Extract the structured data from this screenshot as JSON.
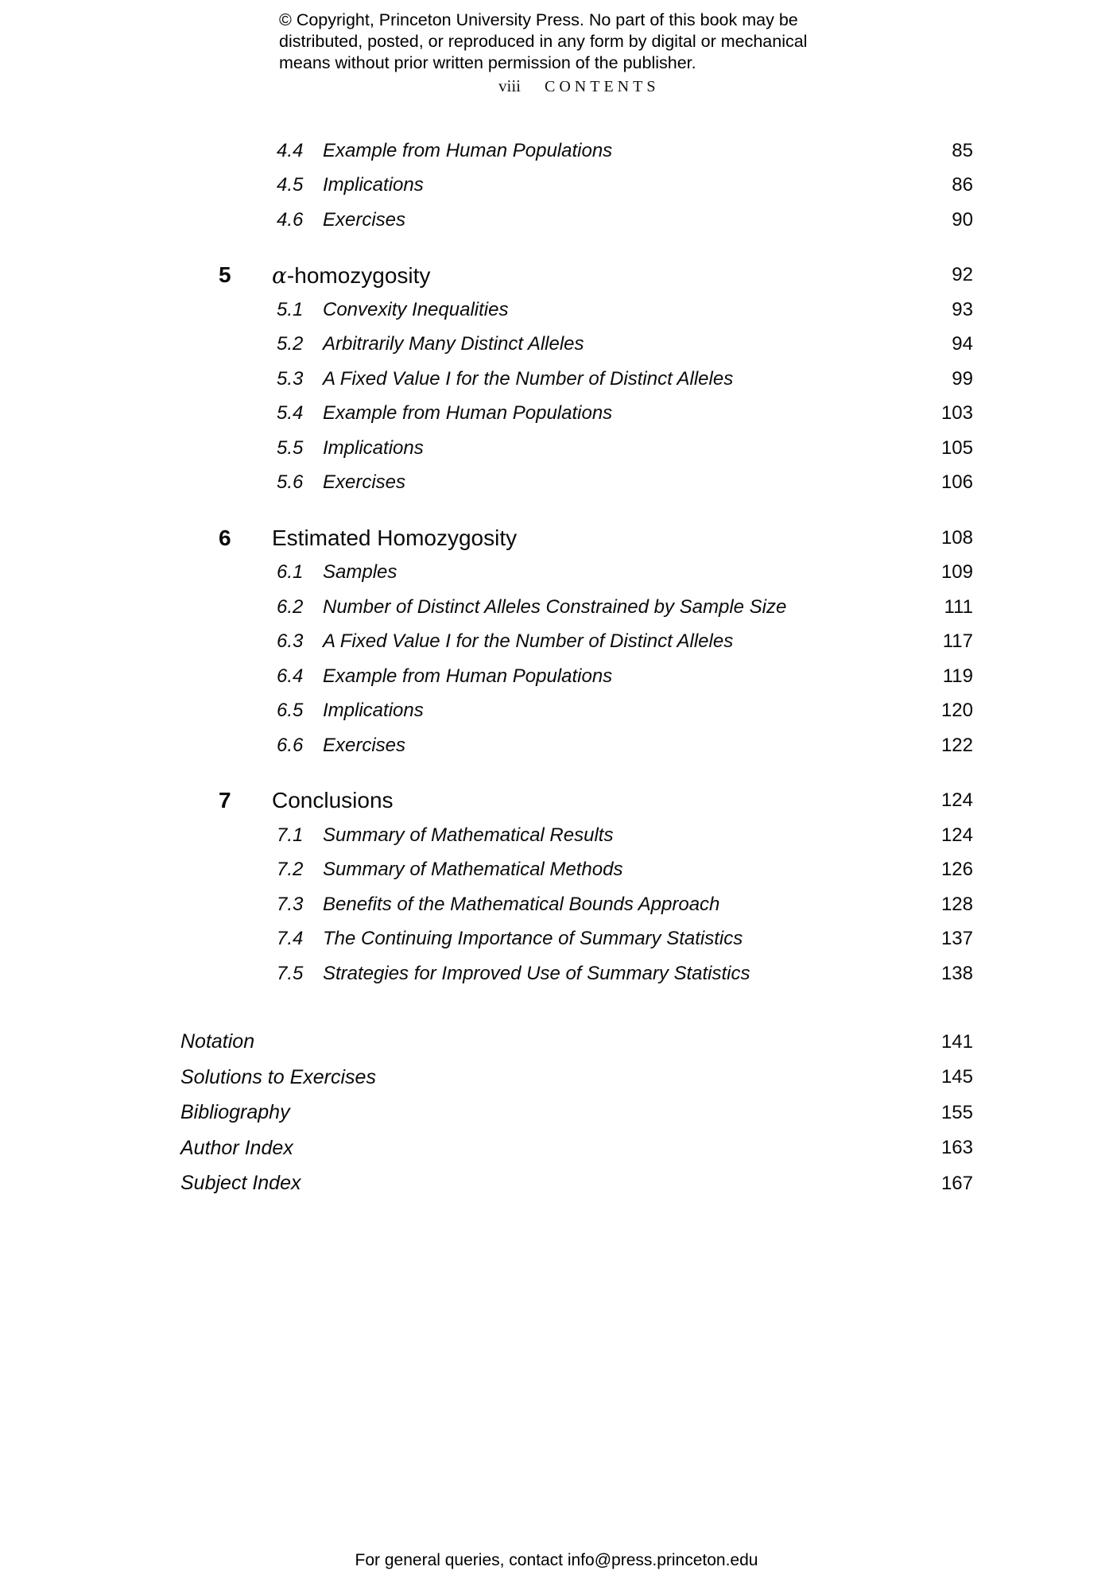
{
  "copyright": {
    "line1": "© Copyright, Princeton University Press. No part of this book may be",
    "line2": "distributed, posted, or reproduced in any form by digital or mechanical",
    "line3": "means without prior written permission of the publisher."
  },
  "running_head": {
    "folio": "viii",
    "title": "CONTENTS"
  },
  "toc": {
    "rows": [
      {
        "type": "section",
        "num": "4.4",
        "title": "Example from Human Populations",
        "page": "85"
      },
      {
        "type": "section",
        "num": "4.5",
        "title": "Implications",
        "page": "86"
      },
      {
        "type": "section",
        "num": "4.6",
        "title": "Exercises",
        "page": "90"
      },
      {
        "type": "chapter",
        "num": "5",
        "title": "α-homozygosity",
        "page": "92"
      },
      {
        "type": "section",
        "num": "5.1",
        "title": "Convexity Inequalities",
        "page": "93"
      },
      {
        "type": "section",
        "num": "5.2",
        "title": "Arbitrarily Many Distinct Alleles",
        "page": "94"
      },
      {
        "type": "section",
        "num": "5.3",
        "title": "A Fixed Value I for the Number of Distinct Alleles",
        "page": "99"
      },
      {
        "type": "section",
        "num": "5.4",
        "title": "Example from Human Populations",
        "page": "103"
      },
      {
        "type": "section",
        "num": "5.5",
        "title": "Implications",
        "page": "105"
      },
      {
        "type": "section",
        "num": "5.6",
        "title": "Exercises",
        "page": "106"
      },
      {
        "type": "chapter",
        "num": "6",
        "title": "Estimated Homozygosity",
        "page": "108"
      },
      {
        "type": "section",
        "num": "6.1",
        "title": "Samples",
        "page": "109"
      },
      {
        "type": "section",
        "num": "6.2",
        "title": "Number of Distinct Alleles Constrained by Sample Size",
        "page": "111"
      },
      {
        "type": "section",
        "num": "6.3",
        "title": "A Fixed Value I for the Number of Distinct Alleles",
        "page": "117"
      },
      {
        "type": "section",
        "num": "6.4",
        "title": "Example from Human Populations",
        "page": "119"
      },
      {
        "type": "section",
        "num": "6.5",
        "title": "Implications",
        "page": "120"
      },
      {
        "type": "section",
        "num": "6.6",
        "title": "Exercises",
        "page": "122"
      },
      {
        "type": "chapter",
        "num": "7",
        "title": "Conclusions",
        "page": "124"
      },
      {
        "type": "section",
        "num": "7.1",
        "title": "Summary of Mathematical Results",
        "page": "124"
      },
      {
        "type": "section",
        "num": "7.2",
        "title": "Summary of Mathematical Methods",
        "page": "126"
      },
      {
        "type": "section",
        "num": "7.3",
        "title": "Benefits of the Mathematical Bounds Approach",
        "page": "128"
      },
      {
        "type": "section",
        "num": "7.4",
        "title": "The Continuing Importance of Summary Statistics",
        "page": "137"
      },
      {
        "type": "section",
        "num": "7.5",
        "title": "Strategies for Improved Use of Summary Statistics",
        "page": "138"
      },
      {
        "type": "backmatter",
        "num": "",
        "title": "Notation",
        "page": "141"
      },
      {
        "type": "backmatter",
        "num": "",
        "title": "Solutions to Exercises",
        "page": "145"
      },
      {
        "type": "backmatter",
        "num": "",
        "title": "Bibliography",
        "page": "155"
      },
      {
        "type": "backmatter",
        "num": "",
        "title": "Author Index",
        "page": "163"
      },
      {
        "type": "backmatter",
        "num": "",
        "title": "Subject Index",
        "page": "167"
      }
    ]
  },
  "footer": {
    "text": "For general queries, contact info@press.princeton.edu"
  },
  "colors": {
    "text": "#0a0a0a",
    "background": "#ffffff"
  }
}
